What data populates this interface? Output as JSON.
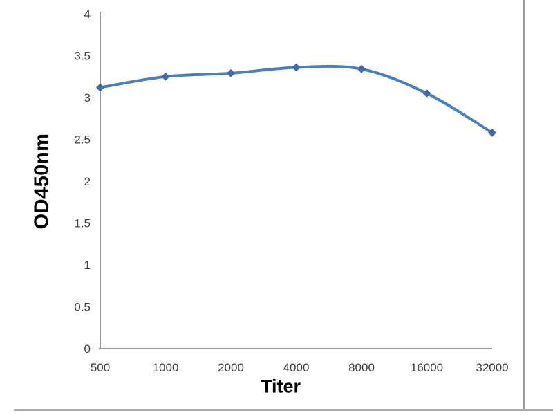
{
  "chart_data": {
    "type": "line",
    "title": "",
    "xlabel": "Titer",
    "ylabel": "OD450nm",
    "categories": [
      "500",
      "1000",
      "2000",
      "4000",
      "8000",
      "16000",
      "32000"
    ],
    "series": [
      {
        "name": "OD450nm",
        "values": [
          3.12,
          3.25,
          3.29,
          3.36,
          3.34,
          3.05,
          2.58
        ]
      }
    ],
    "ylim": [
      0,
      4
    ],
    "y_ticks": [
      "0",
      "0.5",
      "1",
      "1.5",
      "2",
      "2.5",
      "3",
      "3.5",
      "4"
    ],
    "grid": false,
    "legend": "none",
    "line_smooth": true,
    "marker_shape": "diamond",
    "colors": {
      "line": "#4e7fba",
      "marker": "#3f69a8",
      "axis": "#9a9a9a",
      "tick_text": "#3f3f3f",
      "axis_title_text": "#000000",
      "frame_border": "#9c9c9c"
    }
  }
}
